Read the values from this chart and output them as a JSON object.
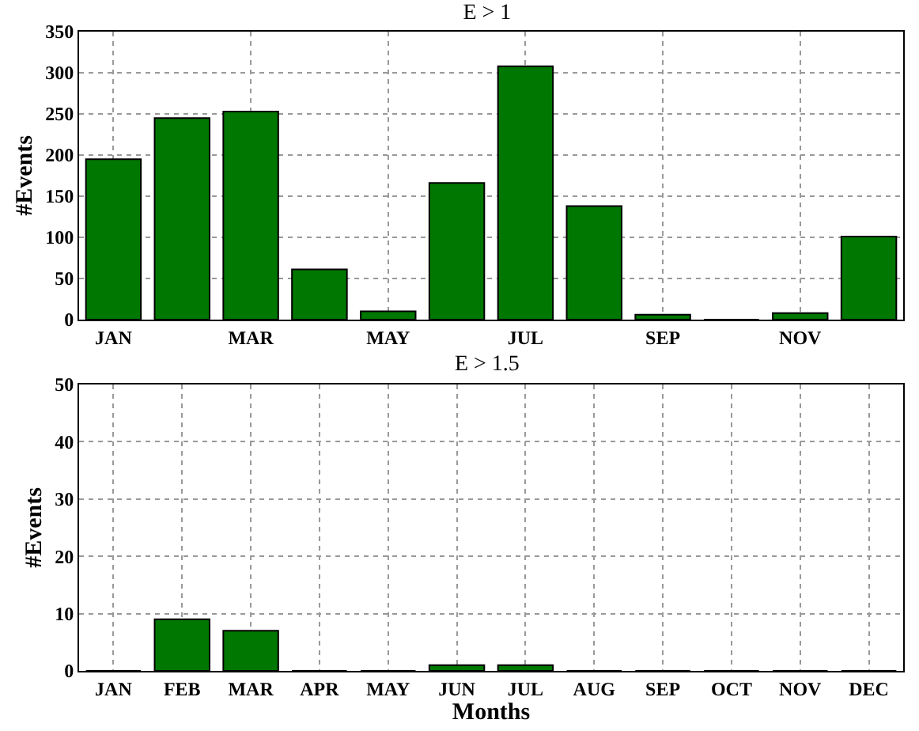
{
  "chart_data": [
    {
      "type": "bar",
      "title": "E > 1",
      "ylabel": "#Events",
      "categories": [
        "JAN",
        null,
        "MAR",
        null,
        "MAY",
        null,
        "JUL",
        null,
        "SEP",
        null,
        "NOV",
        null
      ],
      "values": [
        195,
        245,
        253,
        61,
        10,
        166,
        308,
        138,
        6,
        0,
        8,
        101
      ],
      "color": "#007700",
      "ylim": [
        0,
        350
      ],
      "yticks": [
        0,
        50,
        100,
        150,
        200,
        250,
        300,
        350
      ],
      "grid": true
    },
    {
      "type": "bar",
      "title": "E > 1.5",
      "ylabel": "#Events",
      "xlabel": "Months",
      "categories": [
        "JAN",
        "FEB",
        "MAR",
        "APR",
        "MAY",
        "JUN",
        "JUL",
        "AUG",
        "SEP",
        "OCT",
        "NOV",
        "DEC"
      ],
      "values": [
        0,
        9,
        7,
        0,
        0,
        1,
        1,
        0,
        0,
        0,
        0,
        0
      ],
      "color": "#007700",
      "ylim": [
        0,
        50
      ],
      "yticks": [
        0,
        10,
        20,
        30,
        40,
        50
      ],
      "grid": true
    }
  ]
}
